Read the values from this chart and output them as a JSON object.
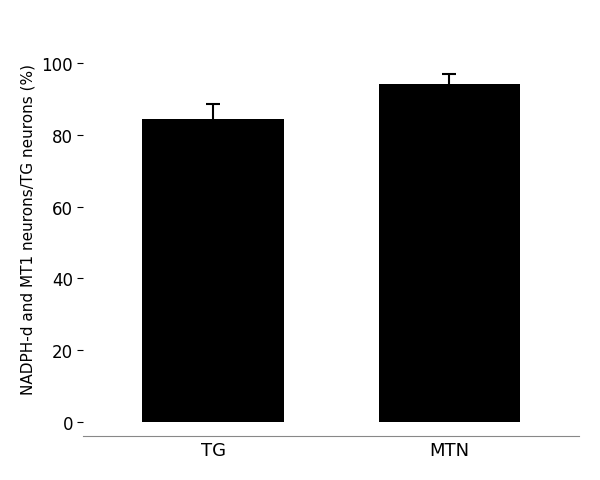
{
  "categories": [
    "TG",
    "MTN"
  ],
  "values": [
    84.5,
    94.0
  ],
  "errors": [
    4.0,
    3.0
  ],
  "bar_color": "#000000",
  "bar_width": 0.6,
  "ylabel": "NADPH-d and MT1 neurons/TG neurons (%)",
  "ylim": [
    -4,
    112
  ],
  "yticks": [
    0,
    20,
    40,
    60,
    80,
    100
  ],
  "background_color": "#ffffff",
  "ylabel_fontsize": 11,
  "tick_fontsize": 12,
  "xlabel_fontsize": 13,
  "error_capsize": 5,
  "error_linewidth": 1.5,
  "error_color": "#000000",
  "xlim": [
    -0.55,
    1.55
  ]
}
